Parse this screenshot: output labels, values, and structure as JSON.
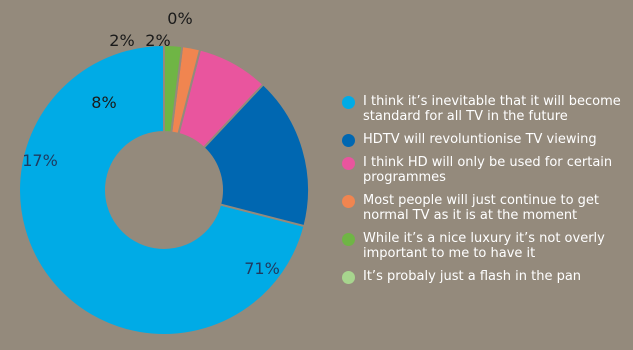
{
  "chart_data": {
    "type": "pie",
    "donut": true,
    "categories": [
      "I think it’s inevitable that it will become standard for all TV in the future",
      "HDTV will revoluntionise TV viewing",
      "I think HD will only be used for certain programmes",
      "Most people will just continue to get normal TV as it is at the moment",
      "While it’s a nice luxury it’s not overly important to me to have it",
      "It’s probaly just a flash in the pan"
    ],
    "values": [
      71,
      17,
      8,
      2,
      2,
      0
    ],
    "value_labels": [
      "71%",
      "17%",
      "8%",
      "2%",
      "2%",
      "0%"
    ],
    "colors": [
      "#00abe6",
      "#0067b1",
      "#e9559e",
      "#f08550",
      "#6fb545",
      "#a7d58e"
    ],
    "legend_position": "right"
  }
}
